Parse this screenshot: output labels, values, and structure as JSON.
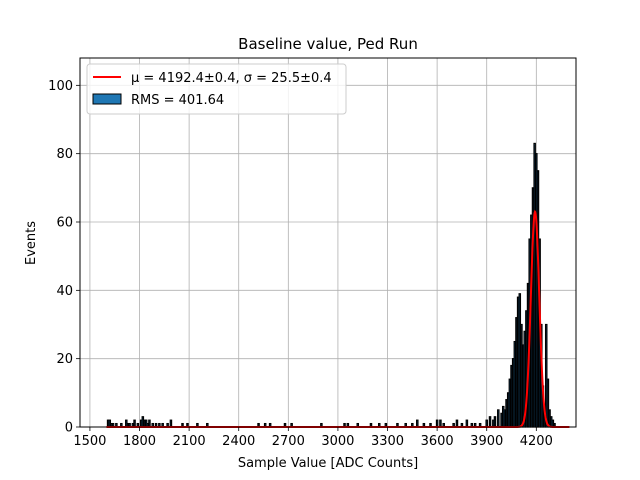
{
  "chart_data": {
    "type": "bar",
    "title": "Baseline value, Ped Run",
    "xlabel": "Sample Value [ADC Counts]",
    "ylabel": "Events",
    "xlim": [
      1440,
      4440
    ],
    "ylim": [
      0,
      108
    ],
    "xticks": [
      1500,
      1800,
      2100,
      2400,
      2700,
      3000,
      3300,
      3600,
      3900,
      4200
    ],
    "xtick_labels": [
      "1500",
      "1800",
      "2100",
      "2400",
      "2700",
      "3000",
      "3300",
      "3600",
      "3900",
      "4200"
    ],
    "yticks": [
      0,
      20,
      40,
      60,
      80,
      100
    ],
    "ytick_labels": [
      "0",
      "20",
      "40",
      "60",
      "80",
      "100"
    ],
    "grid": true,
    "legend_position": "top-left",
    "series": [
      {
        "name": "RMS = 401.64",
        "kind": "histogram",
        "color": "#1f77b4",
        "edge_color": "#000000",
        "bins": [
          {
            "x": 1610,
            "y": 2
          },
          {
            "x": 1620,
            "y": 2
          },
          {
            "x": 1630,
            "y": 1
          },
          {
            "x": 1640,
            "y": 1
          },
          {
            "x": 1660,
            "y": 1
          },
          {
            "x": 1690,
            "y": 1
          },
          {
            "x": 1720,
            "y": 2
          },
          {
            "x": 1730,
            "y": 1
          },
          {
            "x": 1740,
            "y": 1
          },
          {
            "x": 1760,
            "y": 1
          },
          {
            "x": 1770,
            "y": 2
          },
          {
            "x": 1790,
            "y": 1
          },
          {
            "x": 1810,
            "y": 2
          },
          {
            "x": 1820,
            "y": 3
          },
          {
            "x": 1830,
            "y": 2
          },
          {
            "x": 1840,
            "y": 2
          },
          {
            "x": 1850,
            "y": 1
          },
          {
            "x": 1860,
            "y": 2
          },
          {
            "x": 1880,
            "y": 1
          },
          {
            "x": 1900,
            "y": 1
          },
          {
            "x": 1920,
            "y": 1
          },
          {
            "x": 1940,
            "y": 1
          },
          {
            "x": 1970,
            "y": 1
          },
          {
            "x": 1990,
            "y": 2
          },
          {
            "x": 2060,
            "y": 1
          },
          {
            "x": 2090,
            "y": 1
          },
          {
            "x": 2150,
            "y": 1
          },
          {
            "x": 2210,
            "y": 1
          },
          {
            "x": 2520,
            "y": 1
          },
          {
            "x": 2560,
            "y": 1
          },
          {
            "x": 2590,
            "y": 1
          },
          {
            "x": 2680,
            "y": 1
          },
          {
            "x": 2720,
            "y": 1
          },
          {
            "x": 2900,
            "y": 1
          },
          {
            "x": 3040,
            "y": 1
          },
          {
            "x": 3060,
            "y": 1
          },
          {
            "x": 3120,
            "y": 1
          },
          {
            "x": 3200,
            "y": 1
          },
          {
            "x": 3250,
            "y": 1
          },
          {
            "x": 3290,
            "y": 1
          },
          {
            "x": 3360,
            "y": 1
          },
          {
            "x": 3410,
            "y": 1
          },
          {
            "x": 3450,
            "y": 1
          },
          {
            "x": 3480,
            "y": 2
          },
          {
            "x": 3520,
            "y": 1
          },
          {
            "x": 3560,
            "y": 1
          },
          {
            "x": 3600,
            "y": 2
          },
          {
            "x": 3620,
            "y": 2
          },
          {
            "x": 3640,
            "y": 1
          },
          {
            "x": 3700,
            "y": 1
          },
          {
            "x": 3720,
            "y": 2
          },
          {
            "x": 3750,
            "y": 1
          },
          {
            "x": 3780,
            "y": 2
          },
          {
            "x": 3810,
            "y": 1
          },
          {
            "x": 3830,
            "y": 1
          },
          {
            "x": 3860,
            "y": 1
          },
          {
            "x": 3900,
            "y": 2
          },
          {
            "x": 3920,
            "y": 3
          },
          {
            "x": 3940,
            "y": 2
          },
          {
            "x": 3950,
            "y": 3
          },
          {
            "x": 3970,
            "y": 5
          },
          {
            "x": 3990,
            "y": 4
          },
          {
            "x": 4000,
            "y": 6
          },
          {
            "x": 4010,
            "y": 5
          },
          {
            "x": 4020,
            "y": 8
          },
          {
            "x": 4030,
            "y": 10
          },
          {
            "x": 4040,
            "y": 14
          },
          {
            "x": 4050,
            "y": 18
          },
          {
            "x": 4060,
            "y": 20
          },
          {
            "x": 4070,
            "y": 25
          },
          {
            "x": 4080,
            "y": 32
          },
          {
            "x": 4090,
            "y": 38
          },
          {
            "x": 4100,
            "y": 39
          },
          {
            "x": 4110,
            "y": 30
          },
          {
            "x": 4120,
            "y": 24
          },
          {
            "x": 4130,
            "y": 28
          },
          {
            "x": 4140,
            "y": 34
          },
          {
            "x": 4150,
            "y": 42
          },
          {
            "x": 4160,
            "y": 55
          },
          {
            "x": 4170,
            "y": 62
          },
          {
            "x": 4180,
            "y": 70
          },
          {
            "x": 4190,
            "y": 83
          },
          {
            "x": 4200,
            "y": 80
          },
          {
            "x": 4210,
            "y": 75
          },
          {
            "x": 4220,
            "y": 55
          },
          {
            "x": 4230,
            "y": 30
          },
          {
            "x": 4240,
            "y": 12
          },
          {
            "x": 4250,
            "y": 6
          },
          {
            "x": 4260,
            "y": 30
          },
          {
            "x": 4270,
            "y": 14
          },
          {
            "x": 4280,
            "y": 5
          },
          {
            "x": 4290,
            "y": 3
          },
          {
            "x": 4300,
            "y": 2
          },
          {
            "x": 4310,
            "y": 1
          }
        ]
      },
      {
        "name": "μ = 4192.4±0.4, σ = 25.5±0.4",
        "kind": "gaussian-fit",
        "color": "#ff0000",
        "mu": 4192.4,
        "sigma": 25.5,
        "amplitude": 63,
        "x_range": [
          1600,
          4400
        ]
      }
    ]
  },
  "legend": {
    "fit_label_prefix": "μ = 4192.4±0.4, ",
    "fit_label_sigma": "σ = 25.5±0.4",
    "hist_label": "RMS = 401.64"
  }
}
